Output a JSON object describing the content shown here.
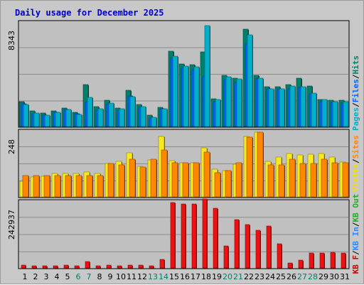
{
  "chart_data": {
    "title": "Daily usage for December 2025",
    "type": "bar",
    "days": [
      "1",
      "2",
      "3",
      "4",
      "5",
      "6",
      "7",
      "8",
      "9",
      "10",
      "11",
      "12",
      "13",
      "14",
      "15",
      "16",
      "17",
      "18",
      "19",
      "20",
      "21",
      "22",
      "23",
      "24",
      "25",
      "26",
      "27",
      "28",
      "29",
      "30",
      "31"
    ],
    "weekend_days": [
      "6",
      "7",
      "13",
      "14",
      "20",
      "21",
      "27",
      "28"
    ],
    "panels": [
      {
        "id": "hits",
        "ymax_label": "8343",
        "ymax": 8343,
        "legend": [
          {
            "text": "Pages",
            "color": "#00b0c8"
          },
          {
            "text": "/",
            "color": "#000000"
          },
          {
            "text": "Files",
            "color": "#0066ff"
          },
          {
            "text": "/",
            "color": "#000000"
          },
          {
            "text": "Hits",
            "color": "#00806a"
          }
        ],
        "series": [
          {
            "name": "Hits",
            "color": "#00806a",
            "values": [
              1960,
              1220,
              1080,
              1260,
              1450,
              1130,
              3300,
              1560,
              2100,
              1470,
              2860,
              1740,
              890,
              1550,
              5960,
              4960,
              4880,
              5940,
              2210,
              4040,
              3860,
              7700,
              4050,
              3130,
              3180,
              3330,
              3830,
              3220,
              2140,
              2110,
              2080
            ]
          },
          {
            "name": "Files",
            "color": "#0066ff",
            "values": [
              1800,
              1000,
              900,
              1100,
              1350,
              1000,
              2000,
              1300,
              1800,
              1300,
              2400,
              1500,
              700,
              1400,
              5400,
              4600,
              4500,
              4000,
              2000,
              3700,
              3500,
              6600,
              3800,
              3000,
              3000,
              3000,
              3100,
              2600,
              2000,
              1900,
              1800
            ]
          },
          {
            "name": "Pages",
            "color": "#00b0c8",
            "values": [
              1730,
              1090,
              880,
              1140,
              1340,
              970,
              2310,
              1430,
              1880,
              1390,
              2380,
              1560,
              750,
              1400,
              5590,
              4810,
              4740,
              8000,
              2140,
              3940,
              3770,
              7300,
              3820,
              2990,
              2980,
              3230,
              3140,
              2660,
              2140,
              1970,
              1980
            ]
          }
        ]
      },
      {
        "id": "visits",
        "ymax_label": "248",
        "ymax": 248,
        "legend": [
          {
            "text": "Visits",
            "color": "#f0e000"
          },
          {
            "text": "/",
            "color": "#000000"
          },
          {
            "text": "Sites",
            "color": "#ff8800"
          }
        ],
        "series": [
          {
            "name": "Visits",
            "color": "#f8e820",
            "values": [
              58,
              75,
              76,
              87,
              87,
              87,
              92,
              87,
              125,
              132,
              163,
              114,
              136,
              224,
              135,
              126,
              126,
              182,
              102,
              98,
              122,
              224,
              240,
              131,
              148,
              160,
              155,
              158,
              162,
              148,
              130
            ]
          },
          {
            "name": "Sites",
            "color": "#ff8800",
            "values": [
              78,
              78,
              78,
              78,
              78,
              78,
              78,
              78,
              125,
              119,
              140,
              110,
              140,
              173,
              126,
              126,
              126,
              167,
              91,
              98,
              126,
              221,
              240,
              120,
              120,
              140,
              123,
              123,
              140,
              126,
              126
            ]
          }
        ]
      },
      {
        "id": "kbytes",
        "ymax_label": "242937",
        "ymax": 242937,
        "legend": [
          {
            "text": "KB F",
            "color": "#cc0000"
          },
          {
            "text": "/",
            "color": "#000000"
          },
          {
            "text": "KB In",
            "color": "#3088ff"
          },
          {
            "text": "/",
            "color": "#000000"
          },
          {
            "text": "KB Out",
            "color": "#22aa22"
          }
        ],
        "series": [
          {
            "name": "KB F",
            "color": "#ee1111",
            "values": [
              9500,
              7800,
              7800,
              8500,
              9000,
              7800,
              22000,
              8000,
              9000,
              8500,
              11500,
              10000,
              8000,
              31500,
              235000,
              229000,
              229000,
              248000,
              216000,
              78000,
              173000,
              157000,
              135000,
              152000,
              87000,
              17000,
              29000,
              53000,
              53000,
              56000,
              53000
            ]
          }
        ]
      }
    ]
  }
}
